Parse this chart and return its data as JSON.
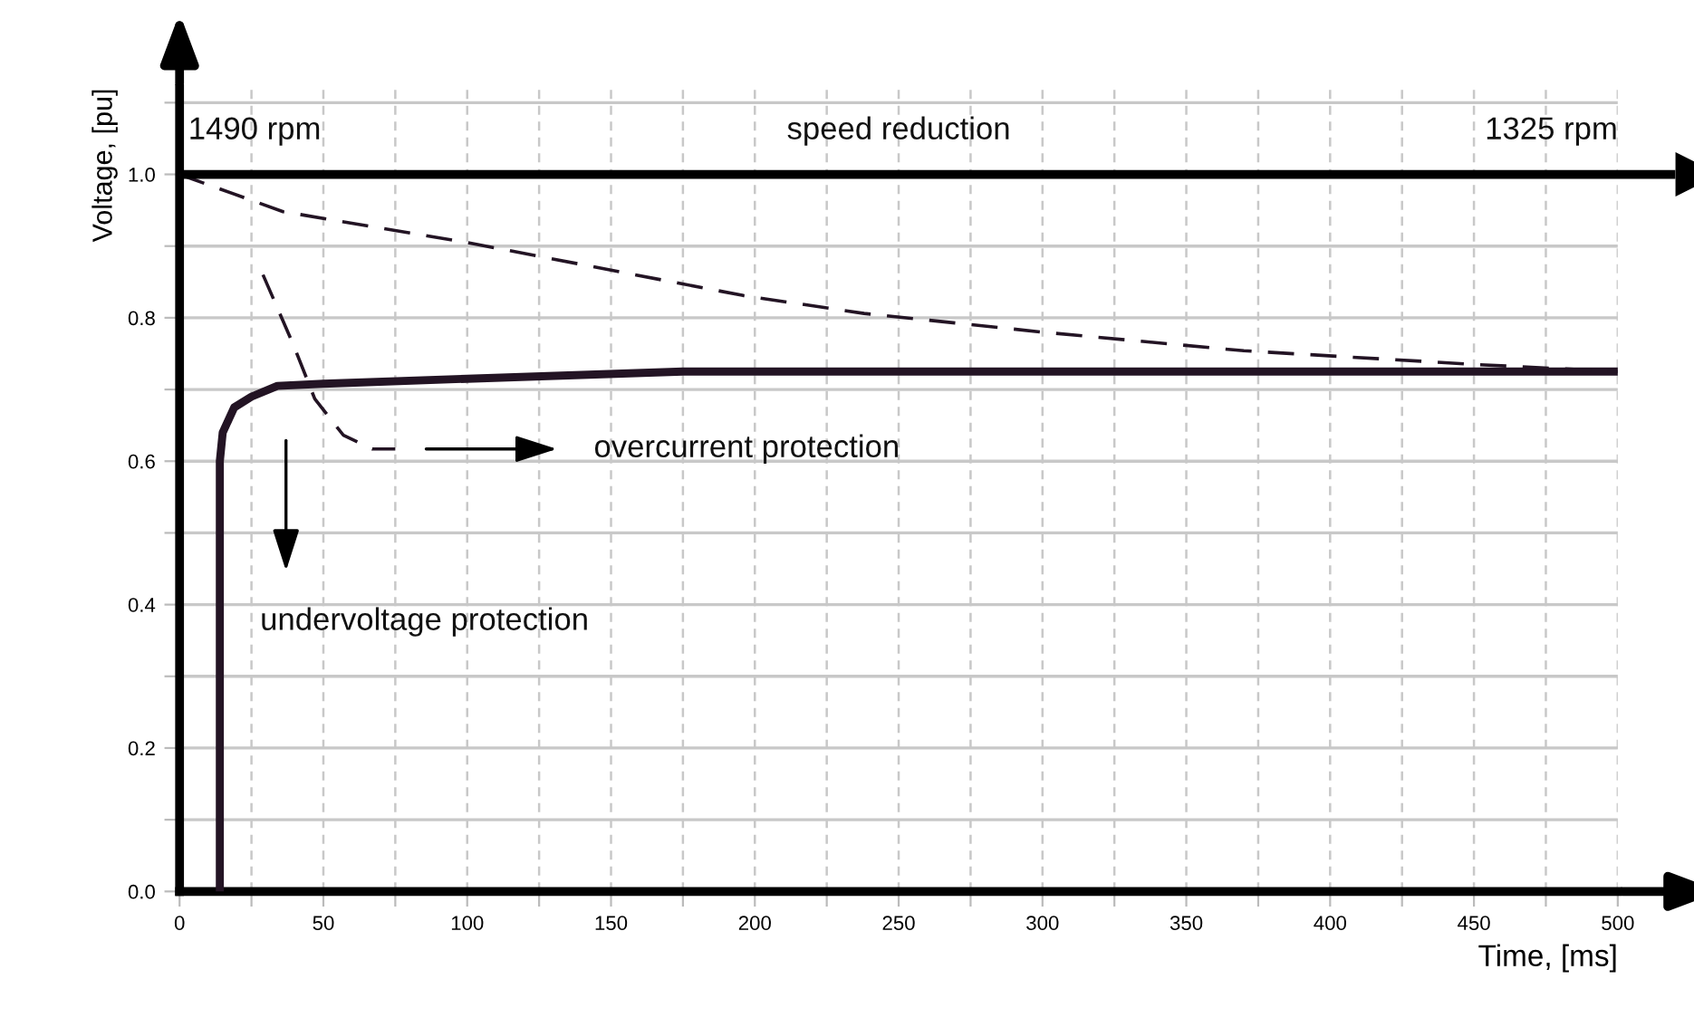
{
  "chart_data": {
    "type": "line",
    "xlabel": "Time, [ms]",
    "ylabel": "Voltage, [pu]",
    "xlim": [
      0,
      500
    ],
    "ylim": [
      0,
      1.12
    ],
    "xticks": [
      0,
      {
        "value": 25,
        "label": null
      },
      50,
      {
        "value": 75,
        "label": null
      },
      100,
      {
        "value": 125,
        "label": null
      },
      150,
      {
        "value": 175,
        "label": null
      },
      200,
      {
        "value": 225,
        "label": null
      },
      250,
      {
        "value": 275,
        "label": null
      },
      300,
      {
        "value": 325,
        "label": null
      },
      350,
      {
        "value": 375,
        "label": null
      },
      400,
      {
        "value": 425,
        "label": null
      },
      450,
      {
        "value": 475,
        "label": null
      },
      500
    ],
    "yticks": [
      {
        "value": 0,
        "label": "0.0"
      },
      {
        "value": 0.1,
        "label": null
      },
      0.2,
      {
        "value": 0.3,
        "label": null
      },
      0.4,
      {
        "value": 0.5,
        "label": null
      },
      0.6,
      {
        "value": 0.7,
        "label": null
      },
      0.8,
      {
        "value": 0.9,
        "label": null
      },
      {
        "value": 1,
        "label": "1.0"
      },
      {
        "value": 1.1,
        "label": null
      }
    ],
    "grid": true,
    "marker": "none",
    "series": [
      {
        "color": "#231424",
        "line_style": "solid",
        "x": [
          14,
          14,
          15,
          19,
          25,
          34,
          50,
          100,
          175,
          500
        ],
        "values": [
          0,
          0.6,
          0.64,
          0.675,
          0.69,
          0.705,
          0.708,
          0.715,
          0.725,
          0.725
        ]
      },
      {
        "color": "#231424",
        "line_style": "dashed",
        "x": [
          0,
          36,
          100,
          196,
          238,
          300,
          370,
          450,
          500
        ],
        "values": [
          1.0,
          0.948,
          0.905,
          0.831,
          0.806,
          0.78,
          0.754,
          0.735,
          0.725
        ]
      },
      {
        "color": "#231424",
        "line_style": "dashed",
        "x": [
          29,
          39.5,
          47,
          57,
          67,
          75
        ],
        "values": [
          0.86,
          0.763,
          0.687,
          0.636,
          0.617,
          0.617
        ]
      }
    ],
    "ref_lines": [
      {
        "axis": "y",
        "value": 1.0,
        "label": "speed reduction",
        "color": "#000000"
      }
    ],
    "annotations": [
      "1490 rpm",
      "1325 rpm",
      "overcurrent protection",
      "undervoltage protection"
    ]
  }
}
